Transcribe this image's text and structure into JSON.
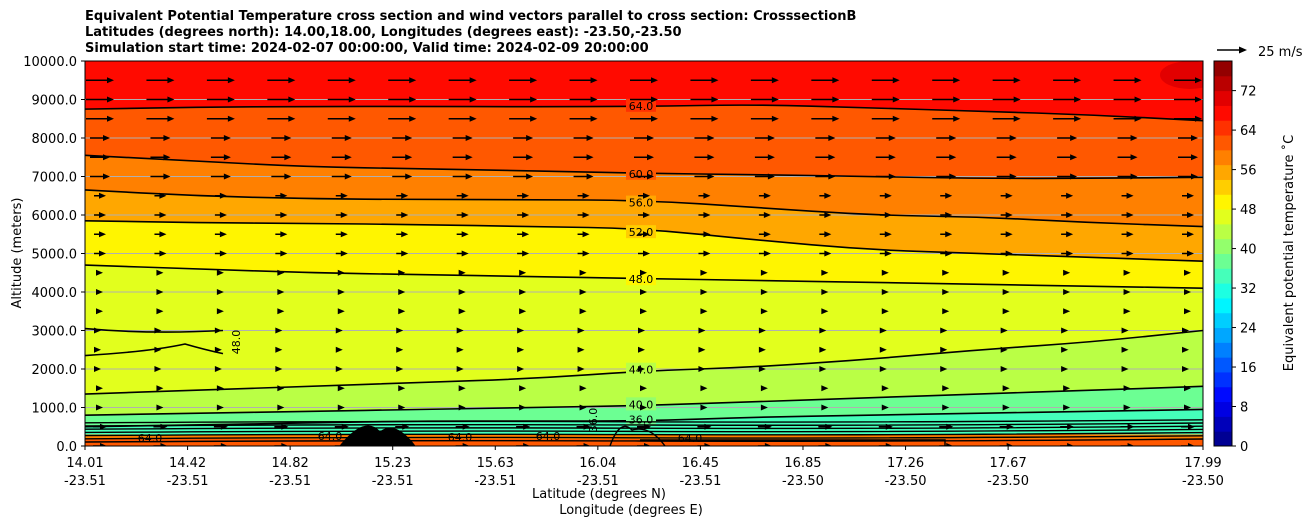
{
  "title_lines": [
    "Equivalent Potential Temperature cross section and wind vectors parallel to cross section: CrosssectionB",
    "Latitudes (degrees north): 14.00,18.00, Longitudes (degrees east): -23.50,-23.50",
    "Simulation start time: 2024-02-07 00:00:00, Valid time: 2024-02-09 20:00:00"
  ],
  "chart_data": {
    "type": "heatmap",
    "title": "Equivalent Potential Temperature cross section and wind vectors parallel to cross section: CrosssectionB",
    "xlabel_line1": "Latitude (degrees N)",
    "xlabel_line2": "Longitude (degrees E)",
    "ylabel": "Altitude (meters)",
    "ylim": [
      0,
      10000
    ],
    "yticks": [
      "0.0",
      "1000.0",
      "2000.0",
      "3000.0",
      "4000.0",
      "5000.0",
      "6000.0",
      "7000.0",
      "8000.0",
      "9000.0",
      "10000.0"
    ],
    "ytick_values": [
      0,
      1000,
      2000,
      3000,
      4000,
      5000,
      6000,
      7000,
      8000,
      9000,
      10000
    ],
    "xticks": [
      {
        "lat": "14.01",
        "lon": "-23.51"
      },
      {
        "lat": "14.42",
        "lon": "-23.51"
      },
      {
        "lat": "14.82",
        "lon": "-23.51"
      },
      {
        "lat": "15.23",
        "lon": "-23.51"
      },
      {
        "lat": "15.63",
        "lon": "-23.51"
      },
      {
        "lat": "16.04",
        "lon": "-23.51"
      },
      {
        "lat": "16.45",
        "lon": "-23.51"
      },
      {
        "lat": "16.85",
        "lon": "-23.50"
      },
      {
        "lat": "17.26",
        "lon": "-23.50"
      },
      {
        "lat": "17.67",
        "lon": "-23.50"
      },
      {
        "lat": "17.99",
        "lon": "-23.50"
      }
    ],
    "xlim": [
      14.01,
      17.99
    ],
    "colorbar": {
      "label": "Equivalent potential temperature $^\\circ$C",
      "label_display": "Equivalent potential temperature ˚C",
      "ticks": [
        "0",
        "8",
        "16",
        "24",
        "32",
        "40",
        "48",
        "56",
        "64",
        "72"
      ],
      "tick_values": [
        0,
        8,
        16,
        24,
        32,
        40,
        48,
        56,
        64,
        72
      ],
      "range": [
        0,
        78
      ]
    },
    "wind_key": {
      "label": "25 m/s",
      "value": 25
    },
    "contour_levels": [
      {
        "value": 64.0,
        "label": "64.0",
        "altitudes": [
          8750,
          8800,
          8820,
          8820,
          8810,
          8820,
          8870,
          8780,
          8700,
          8600,
          8450
        ]
      },
      {
        "value": 60.0,
        "label": "60.0",
        "altitudes": [
          7550,
          7400,
          7250,
          7200,
          7150,
          7080,
          7050,
          7000,
          6950,
          6950,
          6980
        ]
      },
      {
        "value": 56.0,
        "label": "56.0",
        "altitudes": [
          6650,
          6500,
          6420,
          6400,
          6400,
          6380,
          6200,
          6000,
          5950,
          5800,
          5700
        ]
      },
      {
        "value": 52.0,
        "label": "52.0",
        "altitudes": [
          5850,
          5800,
          5780,
          5750,
          5700,
          5650,
          5350,
          5100,
          5000,
          4900,
          4800
        ]
      },
      {
        "value": 48.0,
        "label": "48.0",
        "altitudes": [
          4700,
          4600,
          4500,
          4450,
          4400,
          4350,
          4300,
          4250,
          4200,
          4150,
          4100
        ]
      },
      {
        "value": 44.0,
        "label": "44.0",
        "altitudes": [
          1350,
          1450,
          1550,
          1650,
          1750,
          1950,
          2050,
          2250,
          2500,
          2700,
          3000
        ]
      },
      {
        "value": 40.0,
        "label": "40.0",
        "altitudes": [
          800,
          850,
          900,
          950,
          1000,
          1050,
          1150,
          1250,
          1350,
          1450,
          1550
        ]
      },
      {
        "value": 36.0,
        "label": "36.0",
        "altitudes": [
          500,
          550,
          600,
          650,
          650,
          650,
          750,
          800,
          850,
          900,
          950
        ]
      }
    ],
    "extra_labels": [
      "48.0",
      "64.0",
      "44.0",
      "36.0",
      "64.0",
      "64.0"
    ]
  }
}
